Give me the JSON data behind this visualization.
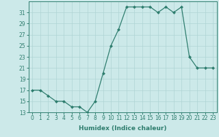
{
  "x": [
    0,
    1,
    2,
    3,
    4,
    5,
    6,
    7,
    8,
    9,
    10,
    11,
    12,
    13,
    14,
    15,
    16,
    17,
    18,
    19,
    20,
    21,
    22,
    23
  ],
  "y": [
    17,
    17,
    16,
    15,
    15,
    14,
    14,
    13,
    15,
    20,
    25,
    28,
    32,
    32,
    32,
    32,
    31,
    32,
    31,
    32,
    23,
    21,
    21,
    21
  ],
  "line_color": "#2e7d6e",
  "marker": "D",
  "marker_size": 2,
  "bg_color": "#cce9e9",
  "grid_color": "#aed4d4",
  "xlabel": "Humidex (Indice chaleur)",
  "xlim": [
    -0.5,
    23.5
  ],
  "ylim": [
    13,
    33
  ],
  "yticks": [
    13,
    15,
    17,
    19,
    21,
    23,
    25,
    27,
    29,
    31
  ],
  "xticks": [
    0,
    1,
    2,
    3,
    4,
    5,
    6,
    7,
    8,
    9,
    10,
    11,
    12,
    13,
    14,
    15,
    16,
    17,
    18,
    19,
    20,
    21,
    22,
    23
  ],
  "tick_fontsize": 5.5,
  "label_fontsize": 6.5
}
